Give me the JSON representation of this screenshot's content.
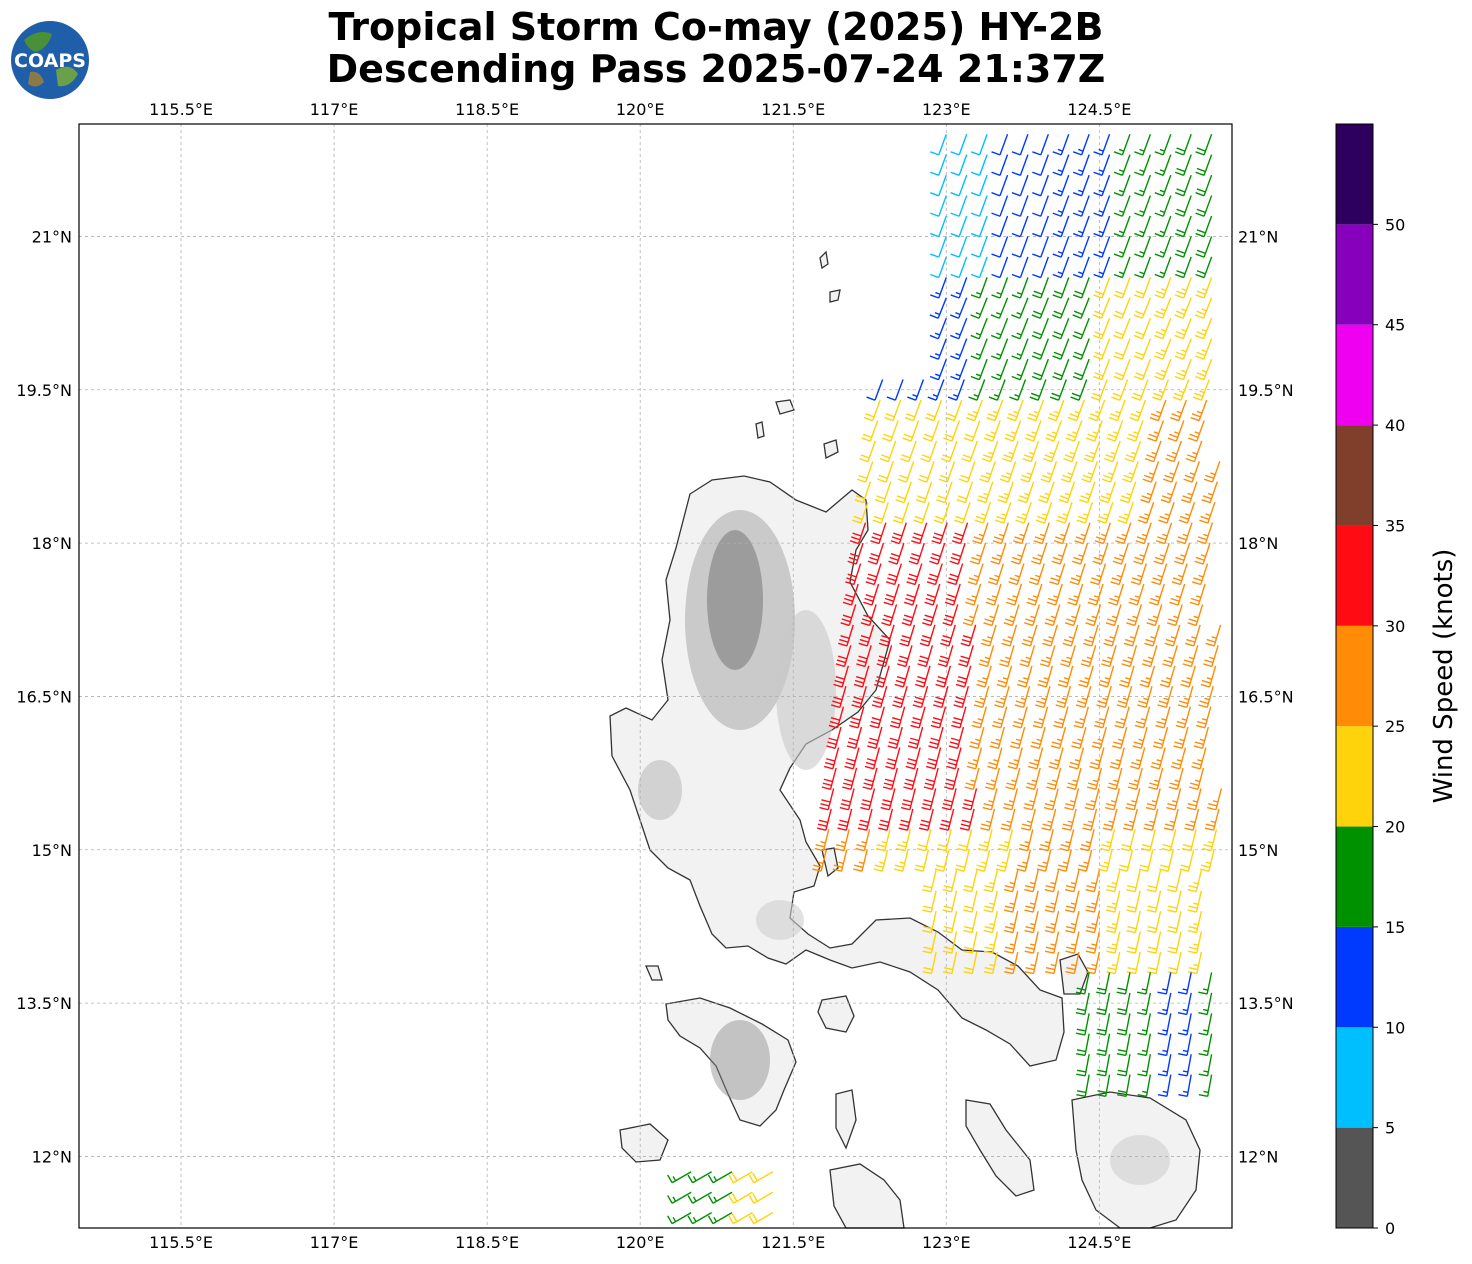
{
  "header": {
    "title_line1": "Tropical Storm Co-may (2025) HY-2B",
    "title_line2": "Descending Pass 2025-07-24 21:37Z",
    "logo_text": "COAPS"
  },
  "map": {
    "lon_range": [
      114.5,
      125.8
    ],
    "lat_range": [
      11.3,
      22.1
    ],
    "lon_ticks": [
      {
        "value": 115.5,
        "label": "115.5°E"
      },
      {
        "value": 117.0,
        "label": "117°E"
      },
      {
        "value": 118.5,
        "label": "118.5°E"
      },
      {
        "value": 120.0,
        "label": "120°E"
      },
      {
        "value": 121.5,
        "label": "121.5°E"
      },
      {
        "value": 123.0,
        "label": "123°E"
      },
      {
        "value": 124.5,
        "label": "124.5°E"
      }
    ],
    "lat_ticks": [
      {
        "value": 21.0,
        "label": "21°N"
      },
      {
        "value": 19.5,
        "label": "19.5°N"
      },
      {
        "value": 18.0,
        "label": "18°N"
      },
      {
        "value": 16.5,
        "label": "16.5°N"
      },
      {
        "value": 15.0,
        "label": "15°N"
      },
      {
        "value": 13.5,
        "label": "13.5°N"
      },
      {
        "value": 12.0,
        "label": "12°N"
      }
    ],
    "grid": true,
    "land_fill": "#f3f3f3",
    "coast_color": "#333333"
  },
  "colorbar": {
    "label": "Wind Speed (knots)",
    "range": [
      0,
      55
    ],
    "bins": [
      {
        "from": 0,
        "to": 5,
        "color": "#555555"
      },
      {
        "from": 5,
        "to": 10,
        "color": "#00bfff"
      },
      {
        "from": 10,
        "to": 15,
        "color": "#0039ff"
      },
      {
        "from": 15,
        "to": 20,
        "color": "#009100"
      },
      {
        "from": 20,
        "to": 25,
        "color": "#ffd30c"
      },
      {
        "from": 25,
        "to": 30,
        "color": "#ff8b07"
      },
      {
        "from": 30,
        "to": 35,
        "color": "#ff0b14"
      },
      {
        "from": 35,
        "to": 40,
        "color": "#803f2b"
      },
      {
        "from": 40,
        "to": 45,
        "color": "#f000f0"
      },
      {
        "from": 45,
        "to": 50,
        "color": "#8700bc"
      },
      {
        "from": 50,
        "to": 55,
        "color": "#2d005f"
      }
    ],
    "ticks": [
      {
        "value": 0,
        "label": "0"
      },
      {
        "value": 5,
        "label": "5"
      },
      {
        "value": 10,
        "label": "10"
      },
      {
        "value": 15,
        "label": "15"
      },
      {
        "value": 20,
        "label": "20"
      },
      {
        "value": 25,
        "label": "25"
      },
      {
        "value": 30,
        "label": "30"
      },
      {
        "value": 35,
        "label": "35"
      },
      {
        "value": 40,
        "label": "40"
      },
      {
        "value": 45,
        "label": "45"
      },
      {
        "value": 50,
        "label": "50"
      }
    ]
  },
  "wind_swaths": [
    {
      "name": "main-swath",
      "lat_range": [
        12.7,
        22.0
      ],
      "lon_west_north": 123.0,
      "lon_west_south": 124.4,
      "lon_east": 125.7
    },
    {
      "name": "south-swath",
      "lat_range": [
        11.3,
        11.85
      ],
      "lon_west": 120.5,
      "lon_east": 121.5
    }
  ]
}
